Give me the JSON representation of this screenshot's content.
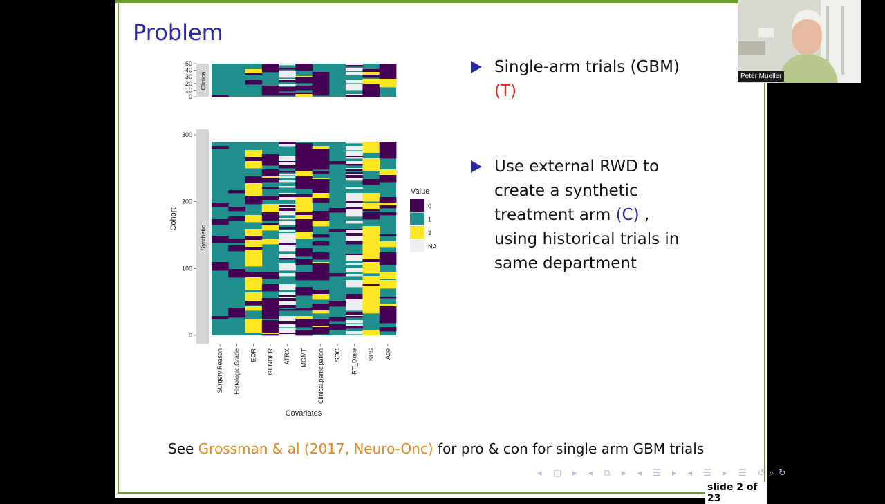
{
  "slide": {
    "title": "Problem",
    "bullets": [
      {
        "line1": "Single-arm trials (GBM)",
        "marker": "(T)"
      },
      {
        "line1": "Use external RWD to",
        "line2": "create a synthetic",
        "line3_text": "treatment arm",
        "line3_marker": "(C)",
        "line3_tail": " ,",
        "line4": "using historical trials in",
        "line5": "same department"
      }
    ],
    "footer": {
      "prefix": "See ",
      "link": "Grossman & al (2017, Neuro-Onc)",
      "suffix": " for pro & con for single arm GBM trials"
    },
    "slide_number": "slide 2 of 23"
  },
  "figure": {
    "ylabel": "Cohort",
    "xlabel": "Covariates",
    "facets": [
      "Clinical",
      "Synthetic"
    ],
    "clinical_ticks": [
      "50",
      "40",
      "30",
      "20",
      "10",
      "0"
    ],
    "synthetic_ticks": [
      "300",
      "200",
      "100",
      "0"
    ],
    "covariates": [
      "Surgery.Reason",
      "Histologic.Grade",
      "EOR",
      "GENDER",
      "ATRX",
      "MGMT",
      "Clinical.participation",
      "SOC",
      "RT_Dose",
      "KPS",
      "Age"
    ],
    "legend_title": "Value",
    "legend": [
      {
        "label": "0",
        "color": "#440154"
      },
      {
        "label": "1",
        "color": "#21908c"
      },
      {
        "label": "2",
        "color": "#fde725"
      },
      {
        "label": "NA",
        "color": "#eceff1"
      }
    ]
  },
  "webcam": {
    "name": "Peter Mueller"
  }
}
